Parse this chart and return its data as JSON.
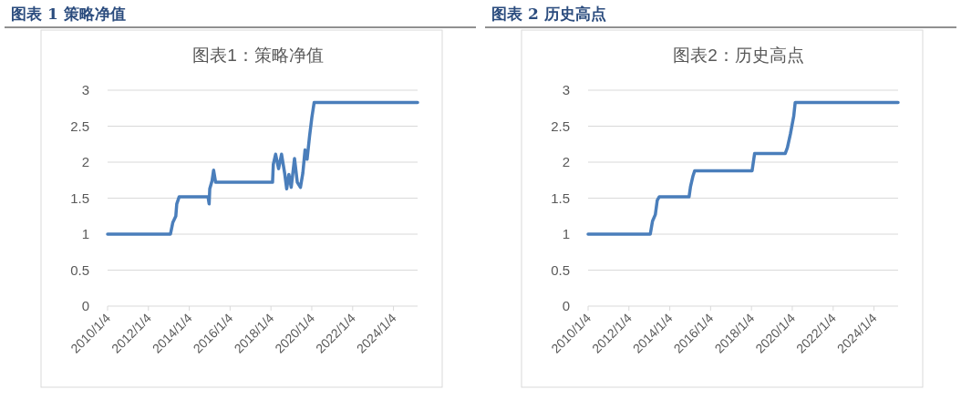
{
  "chart_data": [
    {
      "type": "line",
      "title": "图表 1 策略净值",
      "subtitle": "图表1：策略净值",
      "grid": "y",
      "line_style": "solid",
      "xlim": [
        "2010-01-04",
        "2025-03-10"
      ],
      "xticks": [
        {
          "value": "2010-01-04",
          "label": "2010/1/4"
        },
        {
          "value": "2012-01-04",
          "label": "2012/1/4"
        },
        {
          "value": "2014-01-04",
          "label": "2014/1/4"
        },
        {
          "value": "2016-01-04",
          "label": "2016/1/4"
        },
        {
          "value": "2018-01-04",
          "label": "2018/1/4"
        },
        {
          "value": "2020-01-04",
          "label": "2020/1/4"
        },
        {
          "value": "2022-01-04",
          "label": "2022/1/4"
        },
        {
          "value": "2024-01-04",
          "label": "2024/1/4"
        }
      ],
      "ylim": [
        0,
        3
      ],
      "yticks": [
        0,
        0.5,
        1,
        1.5,
        2,
        2.5,
        3
      ],
      "series": [
        {
          "color": "#4a7ebb",
          "x": [
            "2010-01-04",
            "2013-02-01",
            "2013-03-15",
            "2013-05-08",
            "2013-05-25",
            "2013-07-08",
            "2014-12-05",
            "2014-12-25",
            "2015-01-05",
            "2015-02-15",
            "2015-03-15",
            "2015-04-20",
            "2018-02-01",
            "2018-02-15",
            "2018-03-28",
            "2018-05-20",
            "2018-07-12",
            "2018-09-05",
            "2018-10-12",
            "2018-11-20",
            "2019-01-01",
            "2019-03-01",
            "2019-04-20",
            "2019-06-15",
            "2019-07-28",
            "2019-09-05",
            "2019-10-12",
            "2019-11-25",
            "2020-01-05",
            "2020-02-15",
            "2025-03-10"
          ],
          "values": [
            1.0,
            1.0,
            1.16,
            1.25,
            1.42,
            1.52,
            1.52,
            1.42,
            1.63,
            1.74,
            1.89,
            1.72,
            1.72,
            1.97,
            2.11,
            1.91,
            2.11,
            1.85,
            1.63,
            1.83,
            1.65,
            2.05,
            1.72,
            1.65,
            1.85,
            2.17,
            2.04,
            2.36,
            2.62,
            2.83,
            2.83
          ]
        }
      ]
    },
    {
      "type": "line",
      "title": "图表 2 历史高点",
      "subtitle": "图表2：历史高点",
      "grid": "y",
      "line_style": "solid",
      "xlim": [
        "2010-01-04",
        "2025-03-10"
      ],
      "xticks": [
        {
          "value": "2010-01-04",
          "label": "2010/1/4"
        },
        {
          "value": "2012-01-04",
          "label": "2012/1/4"
        },
        {
          "value": "2014-01-04",
          "label": "2014/1/4"
        },
        {
          "value": "2016-01-04",
          "label": "2016/1/4"
        },
        {
          "value": "2018-01-04",
          "label": "2018/1/4"
        },
        {
          "value": "2020-01-04",
          "label": "2020/1/4"
        },
        {
          "value": "2022-01-04",
          "label": "2022/1/4"
        },
        {
          "value": "2024-01-04",
          "label": "2024/1/4"
        }
      ],
      "ylim": [
        0,
        3
      ],
      "yticks": [
        0,
        0.5,
        1,
        1.5,
        2,
        2.5,
        3
      ],
      "series": [
        {
          "color": "#4a7ebb",
          "x": [
            "2010-01-04",
            "2013-01-20",
            "2013-03-01",
            "2013-04-20",
            "2013-05-25",
            "2013-07-01",
            "2014-12-15",
            "2015-01-10",
            "2015-02-20",
            "2015-03-25",
            "2018-01-15",
            "2018-03-01",
            "2019-08-30",
            "2019-10-08",
            "2019-12-01",
            "2020-01-30",
            "2020-02-25",
            "2025-03-10"
          ],
          "values": [
            1.0,
            1.0,
            1.18,
            1.27,
            1.47,
            1.52,
            1.52,
            1.66,
            1.8,
            1.88,
            1.88,
            2.12,
            2.12,
            2.2,
            2.39,
            2.64,
            2.83,
            2.83
          ]
        }
      ]
    }
  ]
}
